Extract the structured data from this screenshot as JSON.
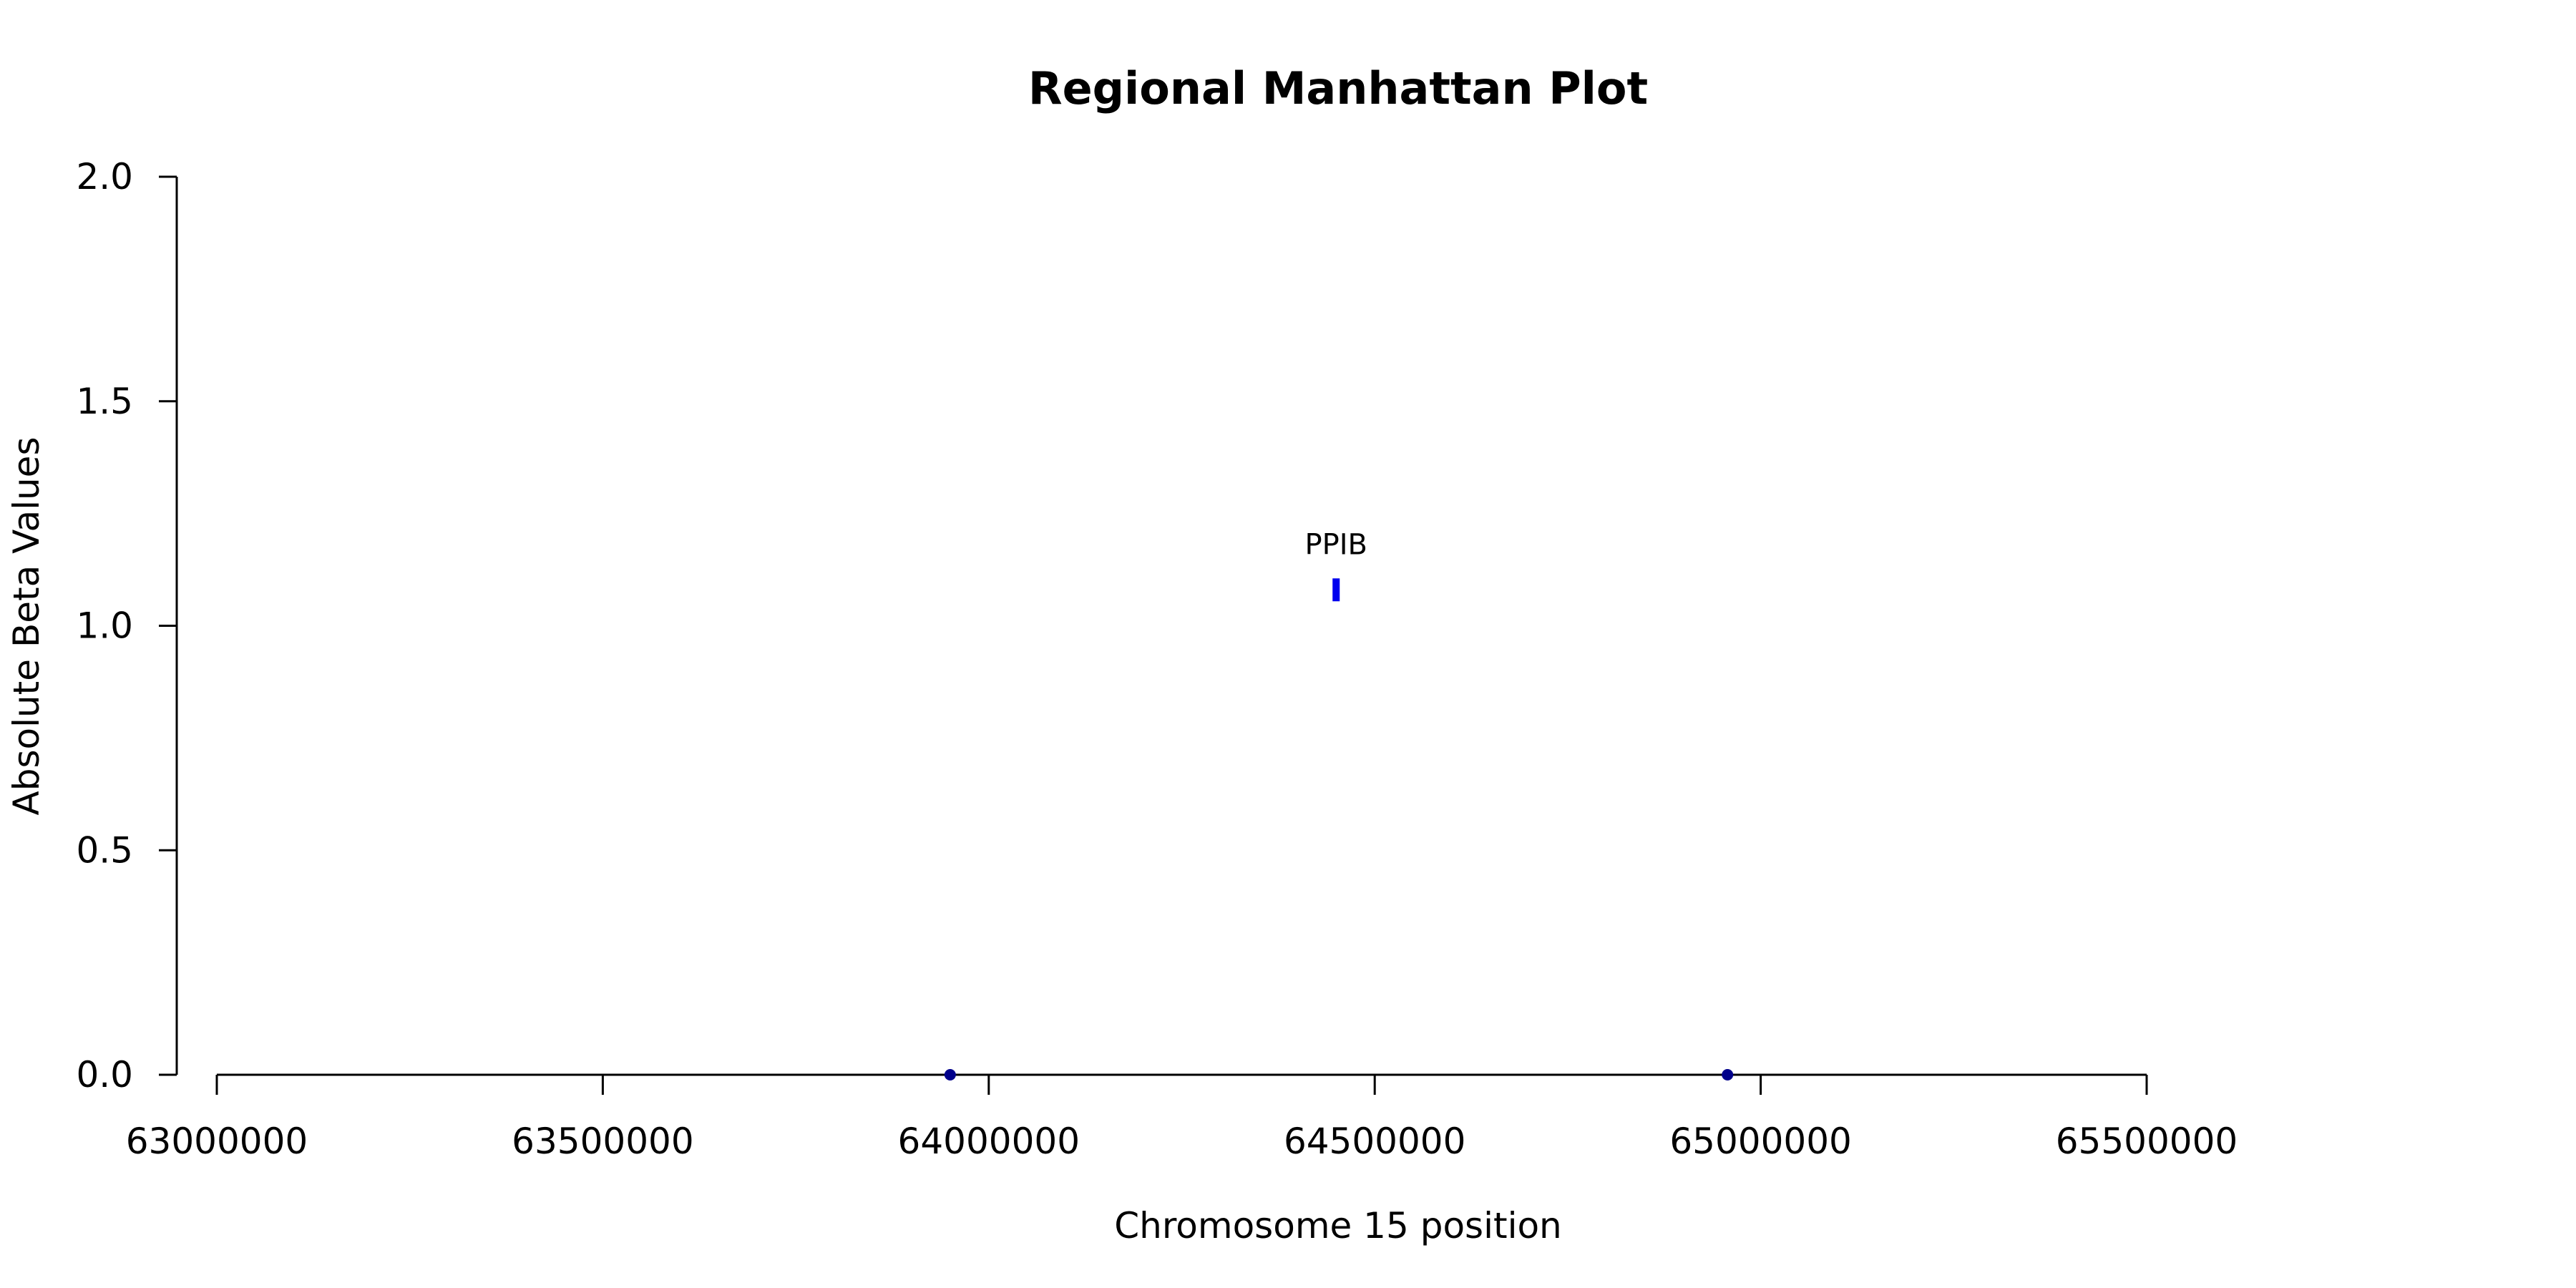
{
  "chart_data": {
    "type": "scatter",
    "title": "Regional Manhattan Plot",
    "xlabel": "Chromosome 15 position",
    "ylabel": "Absolute Beta Values",
    "xlim": [
      63000000,
      65500000
    ],
    "ylim": [
      0,
      2
    ],
    "x_ticks": [
      63000000,
      63500000,
      64000000,
      64500000,
      65000000,
      65500000
    ],
    "x_tick_labels": [
      "63000000",
      "63500000",
      "64000000",
      "64500000",
      "65000000",
      "65500000"
    ],
    "y_ticks": [
      0,
      0.5,
      1,
      1.5,
      2
    ],
    "y_tick_labels": [
      "0.0",
      "0.5",
      "1.0",
      "1.5",
      "2.0"
    ],
    "grid": false,
    "series": [
      {
        "points": [
          {
            "x": 63950000,
            "y": 0
          },
          {
            "x": 64957000,
            "y": 0
          }
        ],
        "color": "#00008b",
        "marker": "circle"
      },
      {
        "points": [
          {
            "x": 64450000,
            "y": 1.08
          }
        ],
        "color": "#0000ee",
        "marker": "vertical-bar"
      }
    ],
    "annotations": [
      {
        "text": "PPIB",
        "x": 64450000,
        "y": 1.08
      }
    ]
  }
}
